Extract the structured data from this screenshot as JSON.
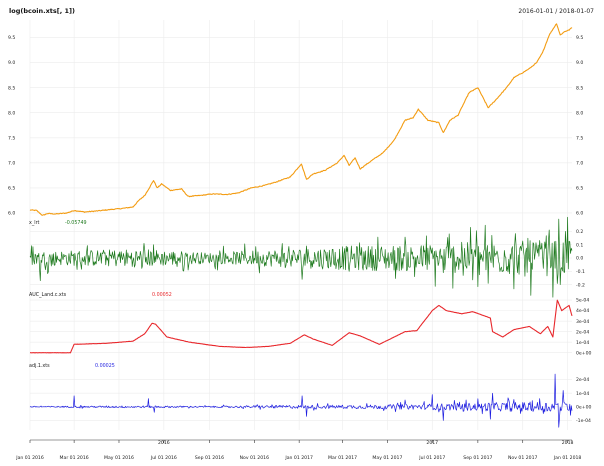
{
  "chart_data": {
    "type": "line",
    "title": "log(bcoin.xts[, 1])",
    "date_range": "2016-01-01 / 2018-01-07",
    "x_range": [
      "2016-01-01",
      "2018-01-07"
    ],
    "x_ticks": [
      "Jan 01 2016",
      "Mar 01 2016",
      "May 01 2016",
      "Jul 01 2016",
      "Sep 01 2016",
      "Nov 01 2016",
      "Jan 01 2017",
      "Mar 01 2017",
      "May 01 2017",
      "Jul 01 2017",
      "Sep 01 2017",
      "Nov 01 2017",
      "Jan 01 2018"
    ],
    "x_tick_dates": [
      "2016-01-01",
      "2016-03-01",
      "2016-05-01",
      "2016-07-01",
      "2016-09-01",
      "2016-11-01",
      "2017-01-01",
      "2017-03-01",
      "2017-05-01",
      "2017-07-01",
      "2017-09-01",
      "2017-11-01",
      "2018-01-01"
    ],
    "year_labels": [
      {
        "label": "2016",
        "date": "2016-07-01"
      },
      {
        "label": "2017",
        "date": "2017-07-01"
      },
      {
        "label": "2018",
        "date": "2018-01-01"
      }
    ],
    "grid": true,
    "panels": [
      {
        "name": "log(bcoin.xts[, 1])",
        "color": "#f39c12",
        "kind": "line",
        "ylim": [
          5.9,
          9.85
        ],
        "yticks": [
          6.0,
          6.5,
          7.0,
          7.5,
          8.0,
          8.5,
          9.0,
          9.5
        ],
        "ytick_labels": [
          "6.0",
          "6.5",
          "7.0",
          "7.5",
          "8.0",
          "8.5",
          "9.0",
          "9.5"
        ],
        "label_sides": "both",
        "series": [
          {
            "x": "2016-01-01",
            "y": 6.06
          },
          {
            "x": "2016-01-10",
            "y": 6.05
          },
          {
            "x": "2016-01-18",
            "y": 5.95
          },
          {
            "x": "2016-01-25",
            "y": 5.99
          },
          {
            "x": "2016-02-05",
            "y": 5.98
          },
          {
            "x": "2016-02-20",
            "y": 6.0
          },
          {
            "x": "2016-03-01",
            "y": 6.05
          },
          {
            "x": "2016-03-15",
            "y": 6.02
          },
          {
            "x": "2016-04-01",
            "y": 6.04
          },
          {
            "x": "2016-04-20",
            "y": 6.07
          },
          {
            "x": "2016-05-05",
            "y": 6.09
          },
          {
            "x": "2016-05-20",
            "y": 6.12
          },
          {
            "x": "2016-05-28",
            "y": 6.25
          },
          {
            "x": "2016-06-05",
            "y": 6.35
          },
          {
            "x": "2016-06-12",
            "y": 6.52
          },
          {
            "x": "2016-06-17",
            "y": 6.65
          },
          {
            "x": "2016-06-22",
            "y": 6.5
          },
          {
            "x": "2016-06-28",
            "y": 6.58
          },
          {
            "x": "2016-07-10",
            "y": 6.45
          },
          {
            "x": "2016-07-25",
            "y": 6.48
          },
          {
            "x": "2016-08-03",
            "y": 6.33
          },
          {
            "x": "2016-08-20",
            "y": 6.35
          },
          {
            "x": "2016-09-05",
            "y": 6.38
          },
          {
            "x": "2016-09-25",
            "y": 6.37
          },
          {
            "x": "2016-10-10",
            "y": 6.4
          },
          {
            "x": "2016-10-28",
            "y": 6.5
          },
          {
            "x": "2016-11-15",
            "y": 6.55
          },
          {
            "x": "2016-12-01",
            "y": 6.62
          },
          {
            "x": "2016-12-20",
            "y": 6.72
          },
          {
            "x": "2017-01-04",
            "y": 6.98
          },
          {
            "x": "2017-01-11",
            "y": 6.67
          },
          {
            "x": "2017-01-20",
            "y": 6.78
          },
          {
            "x": "2017-02-05",
            "y": 6.85
          },
          {
            "x": "2017-02-22",
            "y": 7.0
          },
          {
            "x": "2017-03-03",
            "y": 7.15
          },
          {
            "x": "2017-03-10",
            "y": 6.95
          },
          {
            "x": "2017-03-18",
            "y": 7.1
          },
          {
            "x": "2017-03-25",
            "y": 6.88
          },
          {
            "x": "2017-04-10",
            "y": 7.05
          },
          {
            "x": "2017-04-25",
            "y": 7.2
          },
          {
            "x": "2017-05-10",
            "y": 7.45
          },
          {
            "x": "2017-05-25",
            "y": 7.85
          },
          {
            "x": "2017-06-05",
            "y": 7.9
          },
          {
            "x": "2017-06-12",
            "y": 8.07
          },
          {
            "x": "2017-06-25",
            "y": 7.85
          },
          {
            "x": "2017-07-10",
            "y": 7.8
          },
          {
            "x": "2017-07-16",
            "y": 7.6
          },
          {
            "x": "2017-07-25",
            "y": 7.85
          },
          {
            "x": "2017-08-05",
            "y": 7.95
          },
          {
            "x": "2017-08-20",
            "y": 8.4
          },
          {
            "x": "2017-09-01",
            "y": 8.5
          },
          {
            "x": "2017-09-15",
            "y": 8.1
          },
          {
            "x": "2017-09-25",
            "y": 8.25
          },
          {
            "x": "2017-10-10",
            "y": 8.5
          },
          {
            "x": "2017-10-20",
            "y": 8.7
          },
          {
            "x": "2017-11-01",
            "y": 8.8
          },
          {
            "x": "2017-11-10",
            "y": 8.88
          },
          {
            "x": "2017-11-20",
            "y": 9.0
          },
          {
            "x": "2017-11-28",
            "y": 9.2
          },
          {
            "x": "2017-12-07",
            "y": 9.55
          },
          {
            "x": "2017-12-17",
            "y": 9.78
          },
          {
            "x": "2017-12-22",
            "y": 9.55
          },
          {
            "x": "2017-12-28",
            "y": 9.62
          },
          {
            "x": "2018-01-03",
            "y": 9.65
          },
          {
            "x": "2018-01-07",
            "y": 9.7
          }
        ]
      },
      {
        "name": "x_lrt",
        "value_label": "-0.05749",
        "color": "#1e7a1e",
        "kind": "spiky",
        "ylim": [
          -0.24,
          0.24
        ],
        "yticks": [
          -0.2,
          -0.1,
          0.0,
          0.1,
          0.2
        ],
        "ytick_labels": [
          "-0.2",
          "-0.1",
          "0.0",
          "0.1",
          "0.2"
        ],
        "label_sides": "right",
        "amp_profile": [
          {
            "x": "2016-01-01",
            "a": 0.05
          },
          {
            "x": "2016-06-01",
            "a": 0.07
          },
          {
            "x": "2016-09-01",
            "a": 0.04
          },
          {
            "x": "2016-12-15",
            "a": 0.07
          },
          {
            "x": "2017-03-01",
            "a": 0.09
          },
          {
            "x": "2017-06-01",
            "a": 0.1
          },
          {
            "x": "2017-09-01",
            "a": 0.12
          },
          {
            "x": "2018-01-07",
            "a": 0.14
          }
        ],
        "spikes": [
          {
            "x": "2016-01-15",
            "y": -0.17
          },
          {
            "x": "2016-06-17",
            "y": 0.1
          },
          {
            "x": "2016-08-03",
            "y": -0.09
          },
          {
            "x": "2017-01-05",
            "y": -0.16
          },
          {
            "x": "2017-01-11",
            "y": 0.09
          },
          {
            "x": "2017-03-10",
            "y": -0.1
          },
          {
            "x": "2017-07-16",
            "y": -0.11
          },
          {
            "x": "2017-09-15",
            "y": -0.19
          },
          {
            "x": "2017-09-20",
            "y": 0.17
          },
          {
            "x": "2017-12-07",
            "y": 0.21
          },
          {
            "x": "2017-12-22",
            "y": -0.2
          }
        ]
      },
      {
        "name": "AUC_Land.c.xts",
        "value_label": "0.00052",
        "color": "#e8282c",
        "kind": "line",
        "ylim": [
          -5e-05,
          0.00052
        ],
        "yticks": [
          0.0,
          0.0001,
          0.0002,
          0.0003,
          0.0004,
          0.0005
        ],
        "ytick_labels": [
          "0e+00",
          "1e-04",
          "2e-04",
          "3e-04",
          "4e-04",
          "5e-04"
        ],
        "label_sides": "right",
        "series": [
          {
            "x": "2016-01-01",
            "y": 0.0
          },
          {
            "x": "2016-02-25",
            "y": 0.0
          },
          {
            "x": "2016-03-01",
            "y": 8e-05
          },
          {
            "x": "2016-04-15",
            "y": 9e-05
          },
          {
            "x": "2016-05-20",
            "y": 0.00011
          },
          {
            "x": "2016-06-05",
            "y": 0.00018
          },
          {
            "x": "2016-06-15",
            "y": 0.00028
          },
          {
            "x": "2016-06-20",
            "y": 0.00027
          },
          {
            "x": "2016-07-05",
            "y": 0.00015
          },
          {
            "x": "2016-08-05",
            "y": 0.0001
          },
          {
            "x": "2016-09-15",
            "y": 6e-05
          },
          {
            "x": "2016-10-20",
            "y": 5e-05
          },
          {
            "x": "2016-11-20",
            "y": 6e-05
          },
          {
            "x": "2016-12-20",
            "y": 9e-05
          },
          {
            "x": "2017-01-08",
            "y": 0.00017
          },
          {
            "x": "2017-01-20",
            "y": 0.00013
          },
          {
            "x": "2017-02-15",
            "y": 7e-05
          },
          {
            "x": "2017-03-10",
            "y": 0.00019
          },
          {
            "x": "2017-03-25",
            "y": 0.00016
          },
          {
            "x": "2017-04-20",
            "y": 8e-05
          },
          {
            "x": "2017-05-25",
            "y": 0.0002
          },
          {
            "x": "2017-06-10",
            "y": 0.00021
          },
          {
            "x": "2017-07-01",
            "y": 0.0004
          },
          {
            "x": "2017-07-10",
            "y": 0.00045
          },
          {
            "x": "2017-07-20",
            "y": 0.0004
          },
          {
            "x": "2017-08-10",
            "y": 0.00037
          },
          {
            "x": "2017-08-25",
            "y": 0.00039
          },
          {
            "x": "2017-09-10",
            "y": 0.00035
          },
          {
            "x": "2017-09-18",
            "y": 0.00033
          },
          {
            "x": "2017-09-21",
            "y": 0.0002
          },
          {
            "x": "2017-10-05",
            "y": 0.00015
          },
          {
            "x": "2017-10-20",
            "y": 0.00022
          },
          {
            "x": "2017-11-10",
            "y": 0.00025
          },
          {
            "x": "2017-11-25",
            "y": 0.00018
          },
          {
            "x": "2017-12-05",
            "y": 0.00025
          },
          {
            "x": "2017-12-12",
            "y": 0.00015
          },
          {
            "x": "2017-12-18",
            "y": 0.0005
          },
          {
            "x": "2017-12-24",
            "y": 0.0004
          },
          {
            "x": "2018-01-03",
            "y": 0.00045
          },
          {
            "x": "2018-01-07",
            "y": 0.00035
          }
        ]
      },
      {
        "name": "adj.1.xts",
        "value_label": "0.00025",
        "color": "#1f1fe0",
        "kind": "spiky",
        "ylim": [
          -0.00017,
          0.00027
        ],
        "yticks": [
          -0.0001,
          0.0,
          0.0001,
          0.0002
        ],
        "ytick_labels": [
          "-1e-04",
          "0e+00",
          "1e-04",
          "2e-04"
        ],
        "label_sides": "right",
        "amp_profile": [
          {
            "x": "2016-01-01",
            "a": 4e-06
          },
          {
            "x": "2016-05-20",
            "a": 8e-06
          },
          {
            "x": "2016-09-01",
            "a": 5e-06
          },
          {
            "x": "2016-12-15",
            "a": 1.2e-05
          },
          {
            "x": "2017-04-01",
            "a": 1.4e-05
          },
          {
            "x": "2017-06-15",
            "a": 2e-05
          },
          {
            "x": "2017-09-01",
            "a": 3e-05
          },
          {
            "x": "2018-01-07",
            "a": 4e-05
          }
        ],
        "spikes": [
          {
            "x": "2016-03-01",
            "y": 8e-05
          },
          {
            "x": "2016-06-10",
            "y": 6e-05
          },
          {
            "x": "2016-06-18",
            "y": -4e-05
          },
          {
            "x": "2017-01-05",
            "y": 8e-05
          },
          {
            "x": "2017-01-11",
            "y": -7e-05
          },
          {
            "x": "2017-05-25",
            "y": 5e-05
          },
          {
            "x": "2017-07-01",
            "y": 9e-05
          },
          {
            "x": "2017-07-16",
            "y": -0.0001
          },
          {
            "x": "2017-09-18",
            "y": -9e-05
          },
          {
            "x": "2017-09-21",
            "y": 0.0001
          },
          {
            "x": "2017-12-15",
            "y": 0.00024
          },
          {
            "x": "2017-12-20",
            "y": -0.00015
          },
          {
            "x": "2017-12-26",
            "y": 0.00012
          }
        ]
      }
    ]
  }
}
